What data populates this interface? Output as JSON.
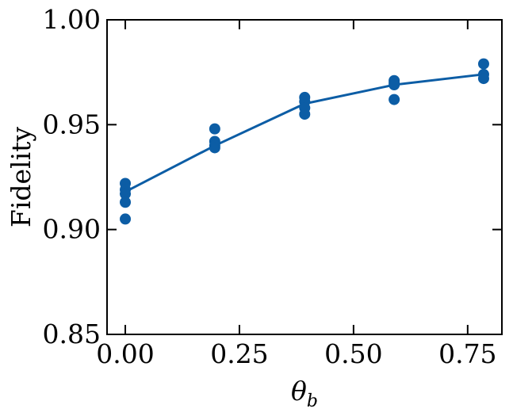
{
  "chart_data": {
    "type": "scatter",
    "title": "",
    "xlabel": "θ",
    "xlabel_subscript": "b",
    "ylabel": "Fidelity",
    "xlim": [
      -0.04,
      0.825
    ],
    "ylim": [
      0.85,
      1.0
    ],
    "xticks": [
      0.0,
      0.25,
      0.5,
      0.75
    ],
    "xtick_labels": [
      "0.00",
      "0.25",
      "0.50",
      "0.75"
    ],
    "yticks": [
      0.85,
      0.9,
      0.95,
      1.0
    ],
    "ytick_labels": [
      "0.85",
      "0.90",
      "0.95",
      "1.00"
    ],
    "grid": false,
    "legend": "none",
    "color": "#0c5da5",
    "series": [
      {
        "kind": "points",
        "x": [
          0.0,
          0.0,
          0.0,
          0.0,
          0.0,
          0.196,
          0.196,
          0.196,
          0.196,
          0.393,
          0.393,
          0.393,
          0.393,
          0.589,
          0.589,
          0.589,
          0.589,
          0.785,
          0.785,
          0.785
        ],
        "y": [
          0.922,
          0.919,
          0.917,
          0.913,
          0.905,
          0.948,
          0.942,
          0.94,
          0.939,
          0.963,
          0.961,
          0.958,
          0.955,
          0.971,
          0.97,
          0.969,
          0.962,
          0.979,
          0.974,
          0.972
        ]
      },
      {
        "kind": "line",
        "x": [
          0.0,
          0.196,
          0.393,
          0.589,
          0.785
        ],
        "y": [
          0.918,
          0.94,
          0.96,
          0.969,
          0.974
        ]
      }
    ]
  }
}
